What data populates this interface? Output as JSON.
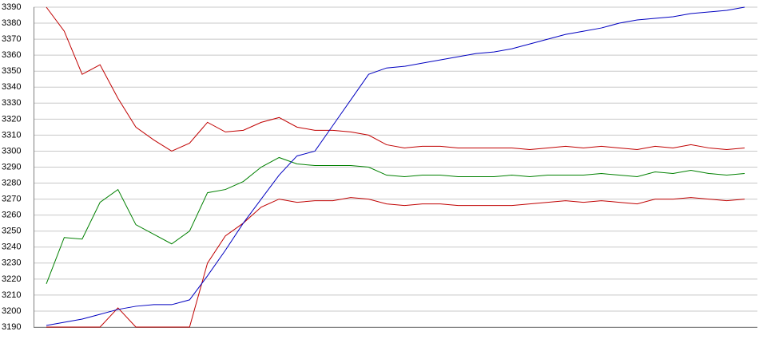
{
  "chart_data": {
    "type": "line",
    "ylim": [
      3190,
      3390
    ],
    "yticks": [
      3190,
      3200,
      3210,
      3220,
      3230,
      3240,
      3250,
      3260,
      3270,
      3280,
      3290,
      3300,
      3310,
      3320,
      3330,
      3340,
      3350,
      3360,
      3370,
      3380,
      3390
    ],
    "grid": true,
    "series": [
      {
        "color": "#c00000",
        "values": [
          3390,
          3375,
          3348,
          3354,
          3333,
          3315,
          3307,
          3300,
          3305,
          3318,
          3312,
          3313,
          3318,
          3321,
          3315,
          3313,
          3313,
          3312,
          3310,
          3304,
          3302,
          3303,
          3303,
          3302,
          3302,
          3302,
          3302,
          3301,
          3302,
          3303,
          3302,
          3303,
          3302,
          3301,
          3303,
          3302,
          3304,
          3302,
          3301,
          3302
        ]
      },
      {
        "color": "#008000",
        "values": [
          3217,
          3246,
          3245,
          3268,
          3276,
          3254,
          3248,
          3242,
          3250,
          3274,
          3276,
          3281,
          3290,
          3296,
          3292,
          3291,
          3291,
          3291,
          3290,
          3285,
          3284,
          3285,
          3285,
          3284,
          3284,
          3284,
          3285,
          3284,
          3285,
          3285,
          3285,
          3286,
          3285,
          3284,
          3287,
          3286,
          3288,
          3286,
          3285,
          3286
        ]
      },
      {
        "color": "#c00000",
        "values": [
          3190,
          3190,
          3190,
          3190,
          3202,
          3190,
          3190,
          3190,
          3190,
          3230,
          3247,
          3255,
          3265,
          3270,
          3268,
          3269,
          3269,
          3271,
          3270,
          3267,
          3266,
          3267,
          3267,
          3266,
          3266,
          3266,
          3266,
          3267,
          3268,
          3269,
          3268,
          3269,
          3268,
          3267,
          3270,
          3270,
          3271,
          3270,
          3269,
          3270
        ]
      },
      {
        "color": "#0000c0",
        "values": [
          3191,
          3193,
          3195,
          3198,
          3201,
          3203,
          3204,
          3204,
          3207,
          3222,
          3238,
          3255,
          3270,
          3285,
          3297,
          3300,
          3316,
          3332,
          3348,
          3352,
          3353,
          3355,
          3357,
          3359,
          3361,
          3362,
          3364,
          3367,
          3370,
          3373,
          3375,
          3377,
          3380,
          3382,
          3383,
          3384,
          3386,
          3387,
          3388,
          3390
        ]
      }
    ]
  }
}
